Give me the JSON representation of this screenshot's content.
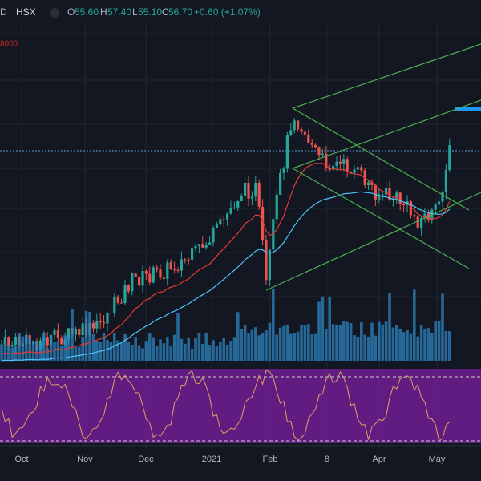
{
  "header": {
    "interval": "D",
    "symbol": "HSX",
    "open_label": "O",
    "open": "55.60",
    "high_label": "H",
    "high": "57.40",
    "low_label": "L",
    "low": "55.10",
    "close_label": "C",
    "close": "56.70",
    "change": "+0.60 (+1.07%)",
    "indicator_value": "8000"
  },
  "time_axis": {
    "labels": [
      "Oct",
      "Nov",
      "Dec",
      "2021",
      "Feb",
      "8",
      "Apr",
      "May"
    ]
  }
}
